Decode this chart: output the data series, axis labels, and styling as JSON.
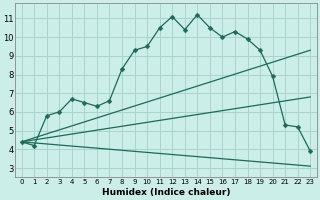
{
  "xlabel": "Humidex (Indice chaleur)",
  "bg_color": "#cceee8",
  "grid_color": "#aad4ce",
  "line_color": "#1a6b5a",
  "xlim": [
    -0.5,
    23.5
  ],
  "ylim": [
    2.5,
    11.8
  ],
  "xticks": [
    0,
    1,
    2,
    3,
    4,
    5,
    6,
    7,
    8,
    9,
    10,
    11,
    12,
    13,
    14,
    15,
    16,
    17,
    18,
    19,
    20,
    21,
    22,
    23
  ],
  "yticks": [
    3,
    4,
    5,
    6,
    7,
    8,
    9,
    10,
    11
  ],
  "main_curve": {
    "x": [
      0,
      1,
      2,
      3,
      4,
      5,
      6,
      7,
      8,
      9,
      10,
      11,
      12,
      13,
      14,
      15,
      16,
      17,
      18,
      19,
      20,
      21,
      22,
      23
    ],
    "y": [
      4.4,
      4.2,
      5.8,
      6.0,
      6.7,
      6.5,
      6.3,
      6.6,
      8.3,
      9.3,
      9.5,
      10.5,
      11.1,
      10.4,
      11.2,
      10.5,
      10.0,
      10.3,
      9.9,
      9.3,
      7.9,
      5.3,
      5.2,
      3.9
    ]
  },
  "fan_lines": [
    {
      "x": [
        0,
        23
      ],
      "y": [
        4.4,
        3.1
      ]
    },
    {
      "x": [
        0,
        23
      ],
      "y": [
        4.4,
        9.3
      ]
    },
    {
      "x": [
        0,
        23
      ],
      "y": [
        4.4,
        6.8
      ]
    }
  ],
  "figsize": [
    3.2,
    2.0
  ],
  "dpi": 100,
  "tick_fontsize_x": 5.0,
  "tick_fontsize_y": 6.0,
  "xlabel_fontsize": 6.5,
  "linewidth": 0.9,
  "markersize": 2.5
}
